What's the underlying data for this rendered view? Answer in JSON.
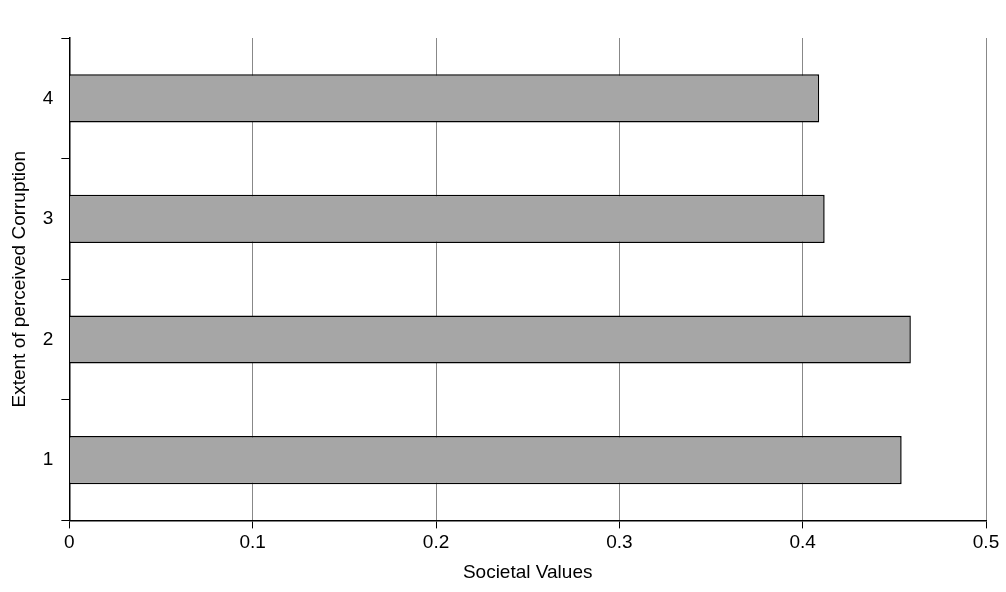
{
  "chart_data": {
    "type": "bar",
    "orientation": "horizontal",
    "xlabel": "Societal Values",
    "ylabel": "Extent of perceived Corruption",
    "categories": [
      "4",
      "3",
      "2",
      "1"
    ],
    "values": [
      0.409,
      0.412,
      0.459,
      0.454
    ],
    "color": "#a6a6a6",
    "xlim": [
      0,
      0.5
    ],
    "xticks": [
      0,
      0.1,
      0.2,
      0.3,
      0.4,
      0.5
    ],
    "grid": "x",
    "legend": false
  }
}
